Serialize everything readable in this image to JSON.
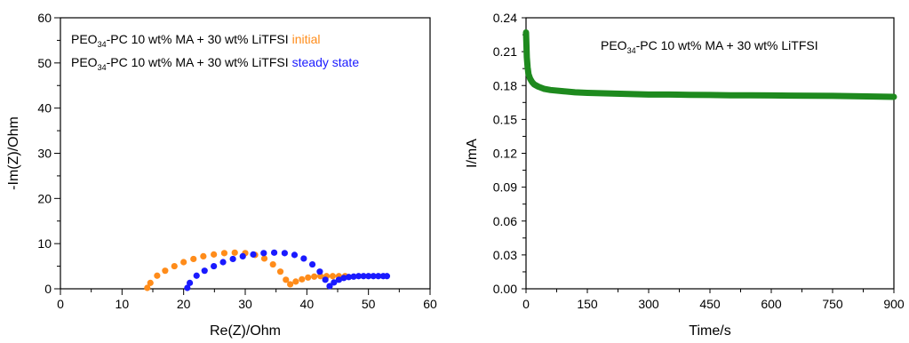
{
  "chart_data": [
    {
      "type": "scatter",
      "xlabel": "Re(Z)/Ohm",
      "ylabel": "-Im(Z)/Ohm",
      "xlim": [
        0,
        60
      ],
      "ylim": [
        0,
        60
      ],
      "xticks": [
        "0",
        "10",
        "20",
        "30",
        "40",
        "50",
        "60"
      ],
      "yticks": [
        "0",
        "10",
        "20",
        "30",
        "40",
        "50",
        "60"
      ],
      "grid": false,
      "legend": {
        "placement": "top-left",
        "entries": [
          {
            "prefix": "PEO",
            "subscript": "34",
            "suffix": "-PC 10 wt% MA + 30 wt% LiTFSI",
            "tag": "initial",
            "color": "#ff8c1a"
          },
          {
            "prefix": "PEO",
            "subscript": "34",
            "suffix": "-PC 10 wt% MA + 30 wt% LiTFSI",
            "tag": "steady state",
            "color": "#1a1aff"
          }
        ]
      },
      "series": [
        {
          "name": "initial",
          "color": "#ff8c1a",
          "x": [
            14.1,
            14.6,
            15.7,
            17.0,
            18.5,
            20.0,
            21.6,
            23.2,
            24.9,
            26.6,
            28.3,
            30.0,
            31.6,
            33.1,
            34.5,
            35.7,
            36.6,
            37.3,
            38.2,
            39.2,
            40.2,
            41.2,
            42.2,
            43.2,
            44.2,
            45.2,
            46.2
          ],
          "y": [
            0.2,
            1.3,
            2.9,
            4.0,
            5.0,
            5.9,
            6.6,
            7.2,
            7.6,
            7.9,
            8.0,
            7.9,
            7.5,
            6.7,
            5.4,
            3.8,
            2.0,
            1.0,
            1.6,
            2.1,
            2.5,
            2.7,
            2.8,
            2.8,
            2.8,
            2.8,
            2.8
          ]
        },
        {
          "name": "steady state",
          "color": "#1a1aff",
          "x": [
            20.6,
            21.0,
            22.1,
            23.4,
            24.9,
            26.4,
            28.0,
            29.6,
            31.3,
            33.0,
            34.7,
            36.4,
            38.0,
            39.5,
            40.9,
            42.1,
            43.0,
            43.7,
            44.4,
            45.2,
            46.0,
            46.8,
            47.6,
            48.4,
            49.2,
            50.0,
            50.8,
            51.6,
            52.4,
            53.0
          ],
          "y": [
            0.2,
            1.3,
            2.9,
            4.0,
            5.0,
            5.9,
            6.6,
            7.2,
            7.6,
            7.9,
            8.0,
            7.9,
            7.5,
            6.7,
            5.4,
            3.8,
            2.0,
            0.6,
            1.4,
            2.0,
            2.4,
            2.6,
            2.7,
            2.8,
            2.8,
            2.8,
            2.8,
            2.8,
            2.8,
            2.8
          ]
        }
      ]
    },
    {
      "type": "line",
      "xlabel": "Time/s",
      "ylabel": "I/mA",
      "xlim": [
        0,
        900
      ],
      "ylim": [
        0,
        0.24
      ],
      "xticks": [
        "0",
        "150",
        "300",
        "450",
        "600",
        "750",
        "900"
      ],
      "yticks": [
        "0.00",
        "0.03",
        "0.06",
        "0.09",
        "0.12",
        "0.15",
        "0.18",
        "0.21",
        "0.24"
      ],
      "grid": false,
      "annotation": {
        "prefix": "PEO",
        "subscript": "34",
        "suffix": "-PC 10 wt% MA + 30 wt% LiTFSI",
        "color": "#1e8a1e"
      },
      "series": [
        {
          "color": "#1e8a1e",
          "x": [
            0,
            1,
            2,
            4,
            6,
            10,
            15,
            20,
            30,
            45,
            60,
            90,
            120,
            150,
            200,
            250,
            300,
            350,
            400,
            450,
            500,
            550,
            600,
            650,
            700,
            750,
            800,
            850,
            900
          ],
          "y": [
            0.227,
            0.215,
            0.205,
            0.196,
            0.19,
            0.186,
            0.183,
            0.181,
            0.179,
            0.177,
            0.176,
            0.175,
            0.174,
            0.1735,
            0.173,
            0.1725,
            0.172,
            0.172,
            0.1718,
            0.1716,
            0.1714,
            0.1713,
            0.1712,
            0.1711,
            0.171,
            0.1708,
            0.1705,
            0.1703,
            0.17
          ]
        }
      ]
    }
  ]
}
